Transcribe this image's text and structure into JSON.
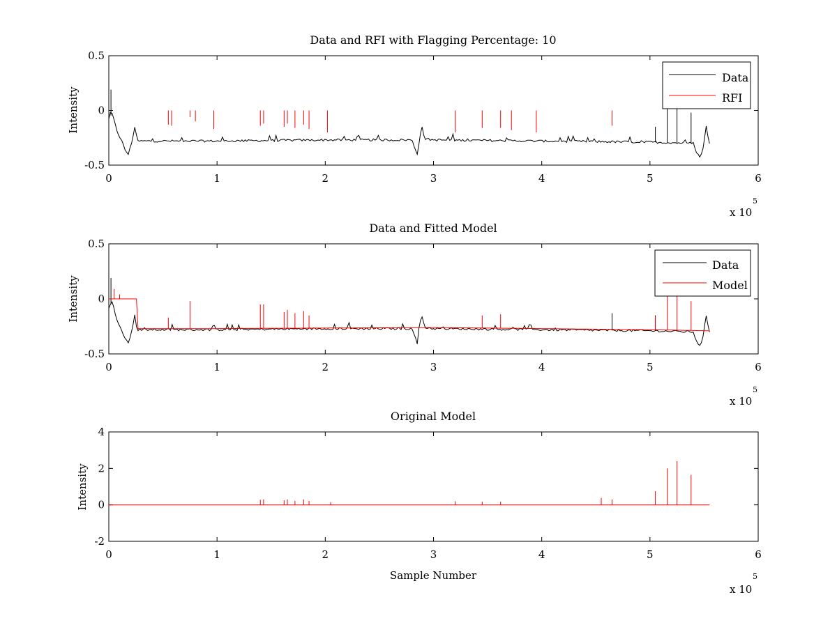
{
  "chart_data": [
    {
      "type": "line",
      "title": "Data and RFI with Flagging Percentage: 10",
      "xlabel": "",
      "ylabel": "Intensity",
      "xlim": [
        0,
        600000
      ],
      "ylim": [
        -0.5,
        0.5
      ],
      "xticks": [
        "0",
        "1",
        "2",
        "3",
        "4",
        "5",
        "6"
      ],
      "yticks": [
        "-0.5",
        "0",
        "0.5"
      ],
      "x_multiplier": "x 10",
      "x_exponent": "5",
      "legend": {
        "position": "top-right",
        "entries": [
          "Data",
          "RFI"
        ]
      },
      "series": [
        {
          "name": "Data",
          "color": "#000000",
          "baseline": [
            [
              0,
              -0.08
            ],
            [
              3000,
              -0.03
            ],
            [
              8000,
              -0.2
            ],
            [
              12000,
              -0.28
            ],
            [
              15000,
              -0.36
            ],
            [
              18000,
              -0.4
            ],
            [
              21000,
              -0.3
            ],
            [
              24000,
              -0.15
            ],
            [
              26000,
              -0.28
            ],
            [
              100000,
              -0.28
            ],
            [
              200000,
              -0.27
            ],
            [
              280000,
              -0.27
            ],
            [
              283000,
              -0.35
            ],
            [
              285000,
              -0.4
            ],
            [
              288000,
              -0.2
            ],
            [
              289000,
              -0.14
            ],
            [
              292000,
              -0.26
            ],
            [
              300000,
              -0.27
            ],
            [
              400000,
              -0.28
            ],
            [
              500000,
              -0.29
            ],
            [
              540000,
              -0.3
            ],
            [
              543000,
              -0.38
            ],
            [
              546000,
              -0.43
            ],
            [
              549000,
              -0.35
            ],
            [
              552000,
              -0.15
            ],
            [
              555000,
              -0.3
            ]
          ],
          "spikes": [
            [
              2000,
              0.19
            ],
            [
              505000,
              -0.15
            ],
            [
              516000,
              0.02
            ],
            [
              525000,
              0.02
            ],
            [
              538000,
              -0.02
            ]
          ]
        },
        {
          "name": "RFI",
          "color": "#ff0000",
          "spikes": [
            [
              55000,
              -0.13
            ],
            [
              58000,
              -0.14
            ],
            [
              75000,
              -0.06
            ],
            [
              80000,
              -0.1
            ],
            [
              97000,
              -0.17
            ],
            [
              140000,
              -0.14
            ],
            [
              143000,
              -0.12
            ],
            [
              162000,
              -0.15
            ],
            [
              165000,
              -0.12
            ],
            [
              172000,
              -0.16
            ],
            [
              180000,
              -0.13
            ],
            [
              185000,
              -0.17
            ],
            [
              202000,
              -0.2
            ],
            [
              320000,
              -0.2
            ],
            [
              345000,
              -0.16
            ],
            [
              362000,
              -0.16
            ],
            [
              372000,
              -0.18
            ],
            [
              395000,
              -0.2
            ],
            [
              465000,
              -0.14
            ]
          ]
        }
      ]
    },
    {
      "type": "line",
      "title": "Data and Fitted Model",
      "xlabel": "",
      "ylabel": "Intensity",
      "xlim": [
        0,
        600000
      ],
      "ylim": [
        -0.5,
        0.5
      ],
      "xticks": [
        "0",
        "1",
        "2",
        "3",
        "4",
        "5",
        "6"
      ],
      "yticks": [
        "-0.5",
        "0",
        "0.5"
      ],
      "x_multiplier": "x 10",
      "x_exponent": "5",
      "legend": {
        "position": "top-right",
        "entries": [
          "Data",
          "Model"
        ]
      },
      "series": [
        {
          "name": "Data",
          "color": "#000000",
          "baseline": [
            [
              0,
              -0.08
            ],
            [
              3000,
              -0.03
            ],
            [
              8000,
              -0.2
            ],
            [
              12000,
              -0.28
            ],
            [
              15000,
              -0.36
            ],
            [
              18000,
              -0.4
            ],
            [
              21000,
              -0.3
            ],
            [
              24000,
              -0.15
            ],
            [
              26000,
              -0.28
            ],
            [
              100000,
              -0.28
            ],
            [
              200000,
              -0.27
            ],
            [
              280000,
              -0.27
            ],
            [
              283000,
              -0.35
            ],
            [
              285000,
              -0.4
            ],
            [
              288000,
              -0.2
            ],
            [
              289000,
              -0.14
            ],
            [
              292000,
              -0.26
            ],
            [
              300000,
              -0.27
            ],
            [
              400000,
              -0.28
            ],
            [
              500000,
              -0.29
            ],
            [
              540000,
              -0.3
            ],
            [
              543000,
              -0.38
            ],
            [
              546000,
              -0.43
            ],
            [
              549000,
              -0.35
            ],
            [
              552000,
              -0.15
            ],
            [
              555000,
              -0.3
            ]
          ],
          "spikes": [
            [
              2000,
              0.19
            ],
            [
              465000,
              -0.13
            ],
            [
              505000,
              -0.15
            ]
          ]
        },
        {
          "name": "Model",
          "color": "#ff0000",
          "baseline": [
            [
              0,
              0.0
            ],
            [
              26000,
              0.0
            ],
            [
              26000,
              -0.27
            ],
            [
              100000,
              -0.27
            ],
            [
              300000,
              -0.26
            ],
            [
              500000,
              -0.28
            ],
            [
              555000,
              -0.29
            ]
          ],
          "spikes": [
            [
              5000,
              0.09
            ],
            [
              10000,
              0.04
            ],
            [
              55000,
              -0.17
            ],
            [
              75000,
              -0.02
            ],
            [
              140000,
              -0.05
            ],
            [
              143000,
              -0.05
            ],
            [
              162000,
              -0.12
            ],
            [
              165000,
              -0.1
            ],
            [
              172000,
              -0.13
            ],
            [
              180000,
              -0.11
            ],
            [
              185000,
              -0.15
            ],
            [
              345000,
              -0.15
            ],
            [
              362000,
              -0.14
            ],
            [
              505000,
              -0.16
            ],
            [
              516000,
              0.04
            ],
            [
              525000,
              0.04
            ],
            [
              538000,
              -0.02
            ]
          ]
        }
      ]
    },
    {
      "type": "line",
      "title": "Original Model",
      "xlabel": "Sample Number",
      "ylabel": "Intensity",
      "xlim": [
        0,
        600000
      ],
      "ylim": [
        -2,
        4
      ],
      "xticks": [
        "0",
        "1",
        "2",
        "3",
        "4",
        "5",
        "6"
      ],
      "yticks": [
        "-2",
        "0",
        "2",
        "4"
      ],
      "x_multiplier": "x 10",
      "x_exponent": "5",
      "series": [
        {
          "name": "Model",
          "color": "#ff0000",
          "baseline": [
            [
              0,
              0
            ],
            [
              555000,
              0
            ]
          ],
          "spikes": [
            [
              505000,
              0.75
            ],
            [
              516000,
              2.0
            ],
            [
              525000,
              2.4
            ],
            [
              538000,
              1.65
            ],
            [
              140000,
              0.28
            ],
            [
              143000,
              0.3
            ],
            [
              162000,
              0.25
            ],
            [
              165000,
              0.3
            ],
            [
              172000,
              0.22
            ],
            [
              180000,
              0.3
            ],
            [
              185000,
              0.22
            ],
            [
              455000,
              0.38
            ],
            [
              465000,
              0.3
            ],
            [
              205000,
              0.15
            ],
            [
              320000,
              0.2
            ],
            [
              345000,
              0.18
            ],
            [
              362000,
              0.18
            ]
          ]
        }
      ]
    }
  ]
}
